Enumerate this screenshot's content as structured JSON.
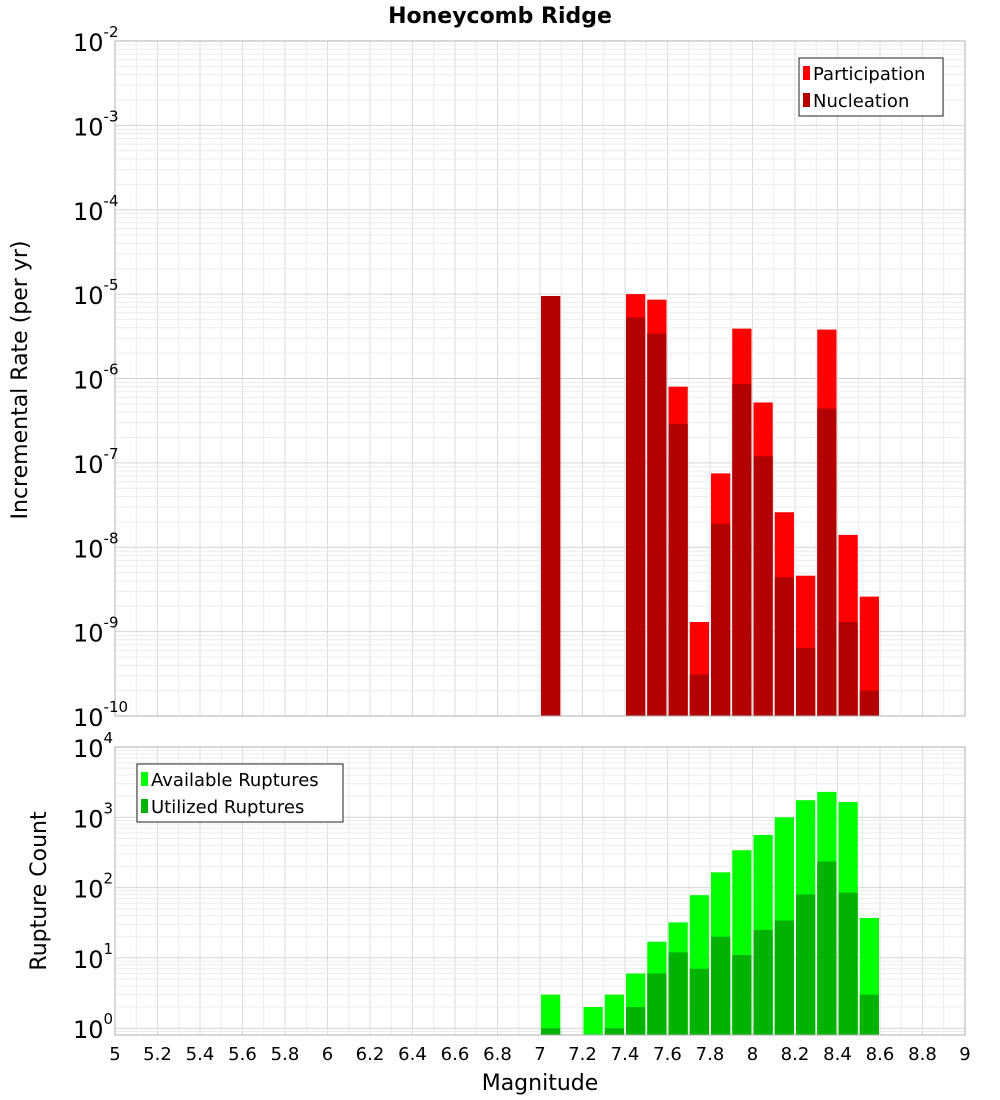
{
  "chart_data": [
    {
      "type": "bar",
      "title": "Honeycomb Ridge",
      "ylabel": "Incremental Rate (per yr)",
      "xlabel": "",
      "xlim": [
        5,
        9
      ],
      "ylim": [
        1e-10,
        0.01
      ],
      "yscale": "log",
      "bar_width": 0.1,
      "grid": true,
      "legend_position": "top-right",
      "series": [
        {
          "name": "Participation",
          "color": "#ff0000",
          "x": [
            7.05,
            7.45,
            7.55,
            7.65,
            7.75,
            7.85,
            7.95,
            8.05,
            8.15,
            8.25,
            8.35,
            8.45,
            8.55
          ],
          "values": [
            9.5e-06,
            1e-05,
            8.6e-06,
            8e-07,
            1.3e-09,
            7.5e-08,
            3.9e-06,
            5.2e-07,
            2.6e-08,
            4.6e-09,
            3.8e-06,
            1.4e-08,
            2.6e-09
          ]
        },
        {
          "name": "Nucleation",
          "color": "#b30000",
          "x": [
            7.05,
            7.45,
            7.55,
            7.65,
            7.75,
            7.85,
            7.95,
            8.05,
            8.15,
            8.25,
            8.35,
            8.45,
            8.55
          ],
          "values": [
            9.5e-06,
            5.3e-06,
            3.4e-06,
            2.9e-07,
            3.1e-10,
            1.9e-08,
            8.6e-07,
            1.2e-07,
            4.4e-09,
            6.4e-10,
            4.4e-07,
            1.3e-09,
            2e-10
          ]
        }
      ]
    },
    {
      "type": "bar",
      "title": "",
      "ylabel": "Rupture Count",
      "xlabel": "Magnitude",
      "xlim": [
        5,
        9
      ],
      "ylim": [
        0.8,
        10000
      ],
      "yscale": "log",
      "bar_width": 0.1,
      "grid": true,
      "legend_position": "top-left",
      "xticks": [
        "5",
        "5.2",
        "5.4",
        "5.6",
        "5.8",
        "6",
        "6.2",
        "6.4",
        "6.6",
        "6.8",
        "7",
        "7.2",
        "7.4",
        "7.6",
        "7.8",
        "8",
        "8.2",
        "8.4",
        "8.6",
        "8.8",
        "9"
      ],
      "series": [
        {
          "name": "Available Ruptures",
          "color": "#00ff00",
          "x": [
            7.05,
            7.25,
            7.35,
            7.45,
            7.55,
            7.65,
            7.75,
            7.85,
            7.95,
            8.05,
            8.15,
            8.25,
            8.35,
            8.45,
            8.55
          ],
          "values": [
            3,
            2,
            3,
            6,
            17,
            32,
            78,
            165,
            340,
            560,
            1000,
            1750,
            2300,
            1650,
            37
          ]
        },
        {
          "name": "Utilized Ruptures",
          "color": "#00b300",
          "x": [
            7.05,
            7.25,
            7.35,
            7.45,
            7.55,
            7.65,
            7.75,
            7.85,
            7.95,
            8.05,
            8.15,
            8.25,
            8.35,
            8.45,
            8.55
          ],
          "values": [
            1,
            0,
            1,
            2,
            6,
            12,
            7,
            20,
            11,
            25,
            34,
            80,
            235,
            85,
            3
          ]
        }
      ]
    }
  ]
}
